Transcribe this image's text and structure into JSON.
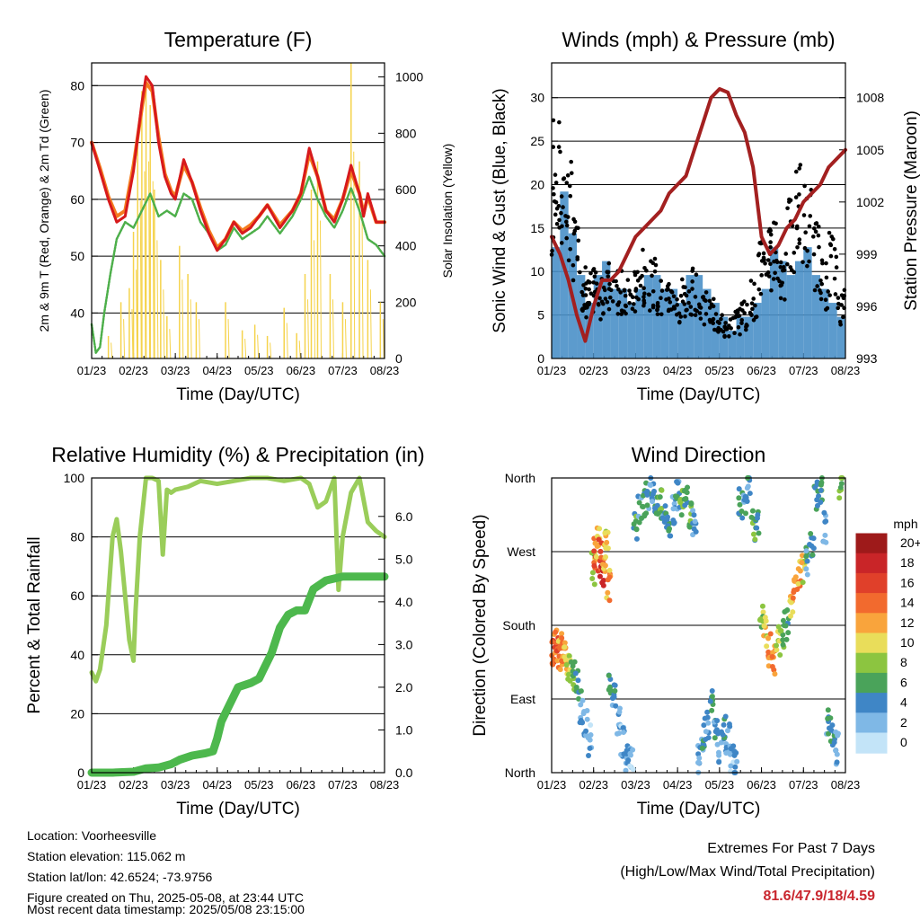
{
  "figure": {
    "location": "Location: Voorheesville",
    "elevation": "Station elevation: 115.062 m",
    "latlon": "Station lat/lon: 42.6524; -73.9756",
    "created": "Figure created on Thu, 2025-05-08, at 23:44 UTC",
    "recent": "Most recent data timestamp: 2025/05/08 23:15:00",
    "extremes_title": "Extremes For Past 7 Days",
    "extremes_subtitle": "(High/Low/Max Wind/Total Precipitation)",
    "extremes_values": "81.6/47.9/18/4.59"
  },
  "chart_data": [
    {
      "type": "line",
      "title": "Temperature (F)",
      "xlabel": "Time (Day/UTC)",
      "ylabel": "2m & 9m T (Red, Orange) & 2m Td (Green)",
      "y2label": "Solar Insolation (Yellow)",
      "x_ticks": [
        "01/23",
        "02/23",
        "03/23",
        "04/23",
        "05/23",
        "06/23",
        "07/23",
        "08/23"
      ],
      "ylim": [
        32,
        84
      ],
      "y_ticks": [
        40,
        50,
        60,
        70,
        80
      ],
      "y2lim": [
        0,
        1050
      ],
      "y2_ticks": [
        0,
        200,
        400,
        600,
        800,
        1000
      ],
      "colors": {
        "t2m": "#d7191c",
        "t9m": "#f47c20",
        "td": "#4daf4a",
        "solar": "#f5d34c"
      },
      "series": [
        {
          "name": "2m T",
          "axis": "left",
          "color": "#d7191c",
          "x": [
            0,
            0.2,
            0.4,
            0.6,
            0.8,
            1.0,
            1.2,
            1.3,
            1.45,
            1.6,
            1.75,
            1.9,
            2.0,
            2.2,
            2.4,
            2.6,
            2.8,
            3.0,
            3.2,
            3.4,
            3.6,
            3.8,
            4.0,
            4.2,
            4.5,
            4.8,
            5.0,
            5.2,
            5.4,
            5.6,
            5.8,
            6.0,
            6.2,
            6.4,
            6.5,
            6.6,
            6.8,
            7.0
          ],
          "values": [
            70,
            65,
            60,
            56,
            57,
            65,
            77,
            81.6,
            80,
            70,
            64,
            61,
            60,
            67,
            63,
            58,
            54,
            51,
            53,
            56,
            54,
            55,
            57,
            59,
            55,
            58,
            61,
            69,
            64,
            58,
            56,
            60,
            66,
            61,
            57,
            61,
            56,
            56
          ]
        },
        {
          "name": "9m T",
          "axis": "left",
          "color": "#f47c20",
          "x": [
            0,
            0.2,
            0.4,
            0.6,
            0.8,
            1.0,
            1.2,
            1.3,
            1.45,
            1.6,
            1.75,
            1.9,
            2.0,
            2.2,
            2.4,
            2.6,
            2.8,
            3.0,
            3.2,
            3.4,
            3.6,
            3.8,
            4.0,
            4.2,
            4.5,
            4.8,
            5.0,
            5.2,
            5.4,
            5.6,
            5.8,
            6.0,
            6.2,
            6.4,
            6.5,
            6.6,
            6.8,
            7.0
          ],
          "values": [
            70,
            65.5,
            60.5,
            57,
            58,
            66,
            76,
            80.5,
            79,
            71,
            64.5,
            61.5,
            60.5,
            66,
            63,
            58.5,
            54.5,
            51.5,
            53,
            56,
            54.5,
            55.5,
            57,
            59,
            55.5,
            58,
            61,
            68,
            64,
            58,
            56.5,
            60,
            65,
            61,
            57.5,
            60.5,
            56,
            56
          ]
        },
        {
          "name": "2m Td",
          "axis": "left",
          "color": "#4daf4a",
          "x": [
            0,
            0.1,
            0.2,
            0.3,
            0.45,
            0.6,
            0.8,
            1.0,
            1.2,
            1.4,
            1.6,
            1.8,
            2.0,
            2.2,
            2.4,
            2.6,
            2.8,
            3.0,
            3.2,
            3.4,
            3.6,
            3.8,
            4.0,
            4.2,
            4.5,
            4.8,
            5.0,
            5.2,
            5.4,
            5.6,
            5.8,
            6.0,
            6.2,
            6.4,
            6.6,
            6.8,
            7.0
          ],
          "values": [
            38,
            33,
            34,
            40,
            47,
            53,
            56,
            55,
            58,
            61,
            57,
            58,
            57,
            61,
            60,
            56,
            54,
            51,
            52,
            55,
            53,
            54,
            55,
            57,
            54,
            57,
            60,
            64,
            60,
            57,
            55,
            58,
            62,
            58,
            53,
            52,
            50
          ]
        },
        {
          "name": "Solar",
          "axis": "right",
          "color": "#f5d34c",
          "x": [
            0.4,
            0.7,
            0.9,
            1.0,
            1.1,
            1.2,
            1.3,
            1.4,
            1.5,
            1.65,
            1.8,
            2.1,
            2.3,
            2.5,
            3.2,
            3.6,
            3.9,
            4.2,
            4.6,
            4.9,
            5.1,
            5.25,
            5.4,
            5.7,
            6.0,
            6.2,
            6.4,
            6.6,
            6.9
          ],
          "values": [
            80,
            200,
            250,
            450,
            800,
            950,
            1000,
            900,
            600,
            350,
            150,
            400,
            300,
            200,
            200,
            100,
            120,
            80,
            180,
            90,
            300,
            600,
            700,
            300,
            200,
            1050,
            700,
            350,
            200
          ]
        }
      ]
    },
    {
      "type": "scatter",
      "title": "Winds (mph) & Pressure (mb)",
      "xlabel": "Time (Day/UTC)",
      "ylabel": "Sonic Wind & Gust (Blue, Black)",
      "y2label": "Station Pressure (Maroon)",
      "x_ticks": [
        "01/23",
        "02/23",
        "03/23",
        "04/23",
        "05/23",
        "06/23",
        "07/23",
        "08/23"
      ],
      "ylim": [
        0,
        34
      ],
      "y_ticks": [
        0,
        5,
        10,
        15,
        20,
        25,
        30
      ],
      "y2lim": [
        993,
        1010
      ],
      "y2_ticks": [
        993,
        996,
        999,
        1002,
        1005,
        1008
      ],
      "colors": {
        "wind": "#4a90c8",
        "gust": "#000000",
        "pressure": "#a32020"
      },
      "series": [
        {
          "name": "Sonic Wind",
          "axis": "left",
          "color": "#4a90c8",
          "x": [
            0,
            0.2,
            0.4,
            0.6,
            0.8,
            1.0,
            1.2,
            1.4,
            1.6,
            1.8,
            2.0,
            2.2,
            2.4,
            2.6,
            2.8,
            3.0,
            3.2,
            3.4,
            3.6,
            3.8,
            4.0,
            4.2,
            4.4,
            4.6,
            4.8,
            5.0,
            5.2,
            5.4,
            5.6,
            5.8,
            6.0,
            6.2,
            6.4,
            6.6,
            6.8,
            7.0
          ],
          "values": [
            8,
            12,
            9,
            6,
            4,
            6,
            7,
            5,
            5,
            4,
            5,
            6,
            6,
            5,
            5,
            4,
            6,
            6,
            5,
            4,
            3,
            2,
            3,
            3,
            4,
            5,
            8,
            7,
            6,
            7,
            8,
            6,
            5,
            4,
            3,
            2
          ]
        },
        {
          "name": "Gust",
          "axis": "left",
          "color": "#000000",
          "x": [
            0,
            0.1,
            0.25,
            0.4,
            0.6,
            0.8,
            0.9,
            1.0,
            1.2,
            1.4,
            1.6,
            1.8,
            2.0,
            2.2,
            2.4,
            2.6,
            2.8,
            3.0,
            3.2,
            3.4,
            3.6,
            3.8,
            4.0,
            4.2,
            4.4,
            4.6,
            4.8,
            5.0,
            5.15,
            5.3,
            5.5,
            5.7,
            5.9,
            6.1,
            6.3,
            6.5,
            6.7,
            6.9
          ],
          "values": [
            20,
            24,
            22,
            20,
            14,
            10,
            8,
            9,
            8,
            10,
            9,
            8,
            9,
            11,
            10,
            8,
            8,
            7,
            8,
            9,
            7,
            6,
            5,
            4,
            5,
            6,
            8,
            12,
            15,
            14,
            12,
            16,
            20,
            18,
            14,
            10,
            13,
            7
          ]
        },
        {
          "name": "Pressure",
          "axis": "right",
          "color": "#a32020",
          "x": [
            0,
            0.2,
            0.4,
            0.6,
            0.8,
            1.0,
            1.2,
            1.4,
            1.6,
            1.8,
            2.0,
            2.2,
            2.4,
            2.6,
            2.8,
            3.0,
            3.2,
            3.4,
            3.6,
            3.8,
            4.0,
            4.2,
            4.4,
            4.6,
            4.8,
            5.0,
            5.2,
            5.4,
            5.6,
            5.8,
            6.0,
            6.2,
            6.4,
            6.6,
            6.8,
            7.0
          ],
          "values": [
            1000,
            999,
            997.5,
            995.5,
            994,
            996,
            997.5,
            997.5,
            998,
            999,
            1000,
            1000.5,
            1001,
            1001.5,
            1002.5,
            1003,
            1003.5,
            1005,
            1006.5,
            1008,
            1008.5,
            1008.3,
            1007,
            1006,
            1004,
            1000,
            999,
            999.5,
            1000.5,
            1001,
            1002,
            1002.5,
            1003,
            1004,
            1004.5,
            1005
          ]
        }
      ]
    },
    {
      "type": "line",
      "title": "Relative Humidity (%) & Precipitation (in)",
      "xlabel": "Time (Day/UTC)",
      "ylabel": "Percent & Total Rainfall",
      "x_ticks": [
        "01/23",
        "02/23",
        "03/23",
        "04/23",
        "05/23",
        "06/23",
        "07/23",
        "08/23"
      ],
      "ylim": [
        0,
        100
      ],
      "y_ticks": [
        0,
        20,
        40,
        60,
        80,
        100
      ],
      "y2lim": [
        0,
        6.9
      ],
      "y2_ticks": [
        "0.0",
        "1.0",
        "2.0",
        "3.0",
        "4.0",
        "5.0",
        "6.0"
      ],
      "colors": {
        "rh": "#9acd5a",
        "precip": "#4db84d"
      },
      "series": [
        {
          "name": "RH",
          "axis": "left",
          "color": "#9acd5a",
          "x": [
            0,
            0.1,
            0.2,
            0.35,
            0.5,
            0.6,
            0.7,
            0.8,
            0.9,
            1.0,
            1.05,
            1.15,
            1.3,
            1.45,
            1.6,
            1.7,
            1.8,
            1.9,
            2.0,
            2.3,
            2.6,
            3.0,
            3.4,
            3.8,
            4.2,
            4.6,
            5.0,
            5.2,
            5.4,
            5.6,
            5.8,
            5.9,
            6.0,
            6.2,
            6.4,
            6.6,
            6.8,
            7.0
          ],
          "values": [
            34,
            31,
            35,
            50,
            80,
            86,
            75,
            60,
            45,
            38,
            55,
            80,
            100,
            100,
            99,
            74,
            96,
            95,
            96,
            97,
            99,
            98,
            99,
            100,
            100,
            99,
            100,
            98,
            90,
            92,
            100,
            62,
            80,
            95,
            100,
            85,
            82,
            80
          ]
        },
        {
          "name": "Total Rainfall",
          "axis": "right",
          "color": "#4db84d",
          "x": [
            0,
            0.5,
            1.0,
            1.3,
            1.6,
            1.9,
            2.1,
            2.4,
            2.7,
            2.9,
            3.0,
            3.1,
            3.3,
            3.5,
            3.8,
            4.0,
            4.1,
            4.3,
            4.5,
            4.7,
            4.9,
            5.1,
            5.3,
            5.6,
            6.0,
            6.5,
            7.0
          ],
          "values": [
            0,
            0,
            0.02,
            0.1,
            0.12,
            0.2,
            0.3,
            0.4,
            0.45,
            0.5,
            0.8,
            1.2,
            1.6,
            2.0,
            2.1,
            2.2,
            2.4,
            2.8,
            3.4,
            3.7,
            3.8,
            3.8,
            4.3,
            4.5,
            4.59,
            4.59,
            4.59
          ]
        }
      ]
    },
    {
      "type": "scatter",
      "title": "Wind Direction",
      "xlabel": "Time (Day/UTC)",
      "ylabel": "Direction (Colored By Speed)",
      "x_ticks": [
        "01/23",
        "02/23",
        "03/23",
        "04/23",
        "05/23",
        "06/23",
        "07/23",
        "08/23"
      ],
      "y_ticks": [
        "North",
        "East",
        "South",
        "West",
        "North"
      ],
      "ylim": [
        0,
        360
      ],
      "colorbar": {
        "title": "mph",
        "labels": [
          "20+",
          "18",
          "16",
          "14",
          "12",
          "10",
          "8",
          "6",
          "4",
          "2",
          "0"
        ],
        "colors": [
          "#9e1a1a",
          "#c92528",
          "#e0402a",
          "#f26a2e",
          "#f9a43c",
          "#e9dd5a",
          "#8cc540",
          "#4aa35a",
          "#3f86c6",
          "#7fb8e6",
          "#c3e4f8"
        ]
      },
      "series": [
        {
          "name": "direction",
          "x": [
            0.05,
            0.1,
            0.15,
            0.2,
            0.25,
            0.3,
            0.35,
            0.4,
            0.5,
            0.6,
            0.7,
            0.8,
            0.9,
            1.0,
            1.05,
            1.1,
            1.15,
            1.2,
            1.25,
            1.3,
            1.35,
            1.4,
            1.5,
            1.6,
            1.7,
            1.8,
            1.9,
            2.0,
            2.1,
            2.2,
            2.3,
            2.4,
            2.5,
            2.6,
            2.7,
            2.8,
            2.9,
            3.0,
            3.1,
            3.2,
            3.3,
            3.4,
            3.5,
            3.6,
            3.7,
            3.8,
            3.9,
            4.0,
            4.1,
            4.2,
            4.3,
            4.4,
            4.5,
            4.6,
            4.7,
            4.8,
            4.9,
            5.0,
            5.1,
            5.2,
            5.3,
            5.4,
            5.5,
            5.6,
            5.7,
            5.8,
            5.9,
            6.0,
            6.1,
            6.2,
            6.3,
            6.4,
            6.5,
            6.6,
            6.7,
            6.8,
            6.9
          ],
          "dir": [
            150,
            155,
            148,
            152,
            145,
            150,
            140,
            130,
            120,
            110,
            80,
            60,
            40,
            250,
            270,
            280,
            265,
            240,
            260,
            275,
            230,
            110,
            90,
            60,
            40,
            20,
            10,
            300,
            320,
            330,
            340,
            350,
            320,
            330,
            310,
            300,
            320,
            340,
            325,
            330,
            315,
            310,
            20,
            40,
            60,
            80,
            50,
            30,
            60,
            40,
            20,
            10,
            330,
            325,
            350,
            300,
            310,
            190,
            170,
            150,
            140,
            160,
            170,
            180,
            200,
            220,
            240,
            250,
            260,
            280,
            340,
            350,
            300,
            60,
            40,
            30,
            355
          ],
          "speed": [
            14,
            13,
            15,
            12,
            13,
            14,
            11,
            9,
            7,
            5,
            4,
            3,
            2,
            8,
            14,
            12,
            16,
            18,
            11,
            10,
            12,
            5,
            4,
            3,
            2,
            3,
            2,
            6,
            4,
            5,
            4,
            3,
            5,
            6,
            4,
            5,
            3,
            4,
            6,
            5,
            7,
            4,
            3,
            4,
            3,
            5,
            4,
            3,
            4,
            3,
            2,
            3,
            5,
            4,
            4,
            6,
            5,
            8,
            10,
            12,
            14,
            9,
            7,
            6,
            11,
            13,
            12,
            10,
            4,
            5,
            4,
            6,
            3,
            4,
            5,
            3,
            8
          ]
        }
      ]
    }
  ]
}
